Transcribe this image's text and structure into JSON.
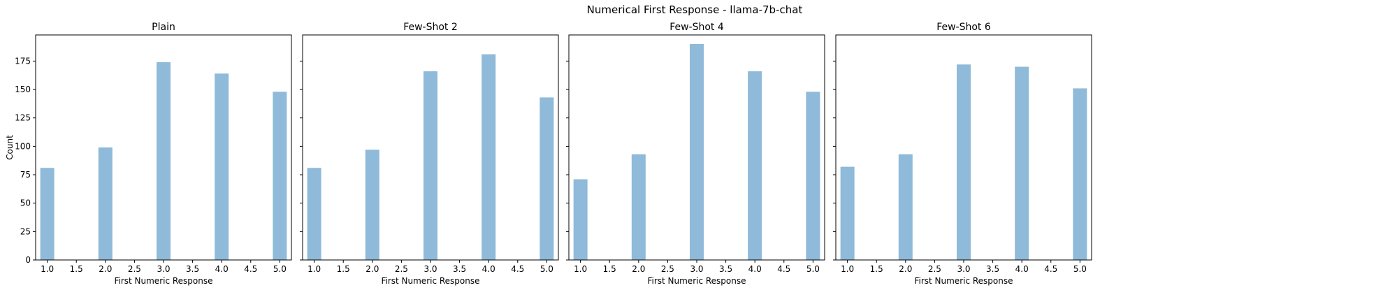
{
  "figure": {
    "title": "Numerical First Response - llama-7b-chat"
  },
  "chart_data": {
    "type": "bar",
    "shared_y": true,
    "bar_color": "#8fbad9",
    "xlabel": "First Numeric Response",
    "ylabel": "Count",
    "xlim": [
      0.8,
      5.2
    ],
    "ylim": [
      0,
      198
    ],
    "xticks": [
      "1.0",
      "1.5",
      "2.0",
      "2.5",
      "3.0",
      "3.5",
      "4.0",
      "4.5",
      "5.0"
    ],
    "yticks": [
      "0",
      "25",
      "50",
      "75",
      "100",
      "125",
      "150",
      "175"
    ],
    "categories": [
      1,
      2,
      3,
      4,
      5
    ],
    "panels": [
      {
        "title": "Plain",
        "values": [
          81,
          99,
          174,
          164,
          148
        ]
      },
      {
        "title": "Few-Shot 2",
        "values": [
          81,
          97,
          166,
          181,
          143
        ]
      },
      {
        "title": "Few-Shot 4",
        "values": [
          71,
          93,
          190,
          166,
          148
        ]
      },
      {
        "title": "Few-Shot 6",
        "values": [
          82,
          93,
          172,
          170,
          151
        ]
      }
    ]
  }
}
